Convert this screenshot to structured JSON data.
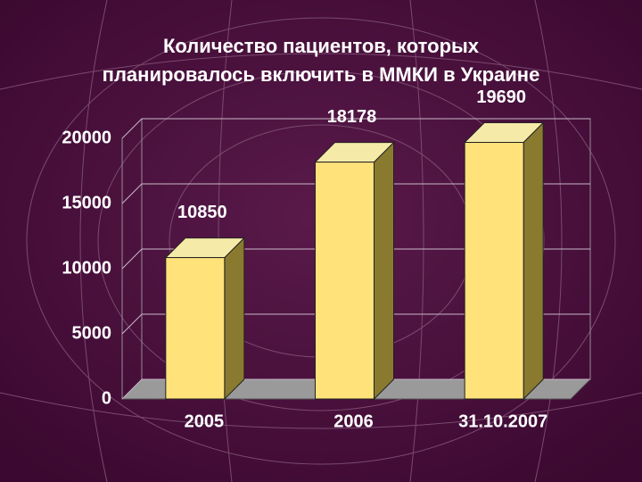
{
  "chart_data": {
    "type": "bar3d",
    "title": "Количество пациентов, которых планировалось включить в ММКИ в Украине",
    "categories": [
      "2005",
      "2006",
      "31.10.2007"
    ],
    "values": [
      10850,
      18178,
      19690
    ],
    "color": "#ffe27a",
    "ylim": [
      0,
      20000
    ],
    "yticks": [
      0,
      5000,
      10000,
      15000,
      20000
    ],
    "grid": true
  }
}
